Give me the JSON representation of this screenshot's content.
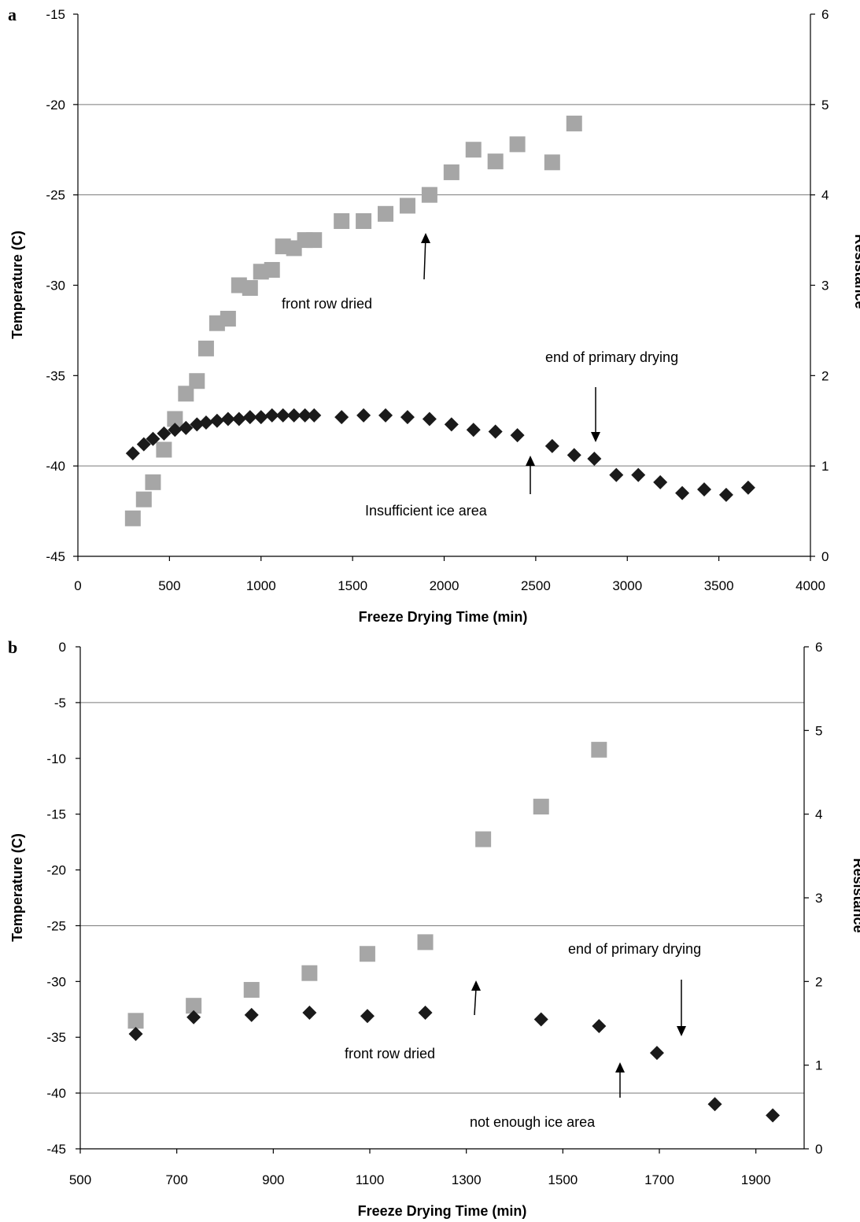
{
  "chart_data": [
    {
      "panel_label": "a",
      "type": "scatter",
      "xlabel": "Freeze Drying Time (min)",
      "ylabel": "Temperature (C)",
      "y2label": "Resistance",
      "xlim": [
        0,
        4000
      ],
      "ylim": [
        -45,
        -15
      ],
      "y2lim": [
        0,
        6
      ],
      "x_ticks": [
        0,
        500,
        1000,
        1500,
        2000,
        2500,
        3000,
        3500,
        4000
      ],
      "y_ticks": [
        -45,
        -40,
        -35,
        -30,
        -25,
        -20,
        -15
      ],
      "y2_ticks": [
        0,
        1,
        2,
        3,
        4,
        5,
        6
      ],
      "gridlines_y": [
        -40,
        -25,
        -20
      ],
      "series": [
        {
          "marker": "diamond",
          "color": "#1a1a1a",
          "axis": "left",
          "x": [
            300,
            360,
            410,
            470,
            530,
            590,
            650,
            700,
            760,
            820,
            880,
            940,
            1000,
            1060,
            1120,
            1180,
            1240,
            1290,
            1440,
            1560,
            1680,
            1800,
            1920,
            2040,
            2160,
            2280,
            2400,
            2590,
            2710,
            2820,
            2940,
            3060,
            3180,
            3300,
            3420,
            3540,
            3660
          ],
          "y": [
            -39.3,
            -38.8,
            -38.5,
            -38.2,
            -38.0,
            -37.9,
            -37.7,
            -37.6,
            -37.5,
            -37.4,
            -37.4,
            -37.3,
            -37.3,
            -37.2,
            -37.2,
            -37.2,
            -37.2,
            -37.2,
            -37.3,
            -37.2,
            -37.2,
            -37.3,
            -37.4,
            -37.7,
            -38.0,
            -38.1,
            -38.3,
            -38.9,
            -39.4,
            -39.6,
            -40.5,
            -40.5,
            -40.9,
            -41.5,
            -41.3,
            -41.6,
            -41.2
          ]
        },
        {
          "marker": "square",
          "color": "#a6a6a6",
          "axis": "right",
          "x": [
            300,
            360,
            410,
            470,
            530,
            590,
            650,
            700,
            760,
            820,
            880,
            940,
            1000,
            1060,
            1120,
            1180,
            1240,
            1290,
            1440,
            1560,
            1680,
            1800,
            1920,
            2040,
            2160,
            2280,
            2400,
            2590,
            2710
          ],
          "y": [
            0.42,
            0.63,
            0.82,
            1.18,
            1.52,
            1.8,
            1.94,
            2.3,
            2.58,
            2.63,
            3.0,
            2.97,
            3.15,
            3.17,
            3.43,
            3.41,
            3.5,
            3.5,
            3.71,
            3.71,
            3.79,
            3.88,
            4.0,
            4.25,
            4.5,
            4.37,
            4.56,
            4.36,
            4.79
          ]
        }
      ],
      "annotations": [
        {
          "text": "front row dried"
        },
        {
          "text": "end of primary drying"
        },
        {
          "text": "Insufficient ice area"
        }
      ]
    },
    {
      "panel_label": "b",
      "type": "scatter",
      "xlabel": "Freeze Drying Time (min)",
      "ylabel": "Temperature (C)",
      "y2label": "Resistance",
      "xlim": [
        500,
        2000
      ],
      "ylim": [
        -45,
        0
      ],
      "y2lim": [
        0,
        6
      ],
      "x_ticks": [
        500,
        700,
        900,
        1100,
        1300,
        1500,
        1700,
        1900
      ],
      "y_ticks": [
        -45,
        -40,
        -35,
        -30,
        -25,
        -20,
        -15,
        -10,
        -5,
        0
      ],
      "y2_ticks": [
        0,
        1,
        2,
        3,
        4,
        5,
        6
      ],
      "gridlines_y": [
        -40,
        -25,
        -5
      ],
      "series": [
        {
          "marker": "diamond",
          "color": "#1a1a1a",
          "axis": "left",
          "x": [
            615,
            735,
            855,
            975,
            1095,
            1215,
            1455,
            1575,
            1695,
            1815,
            1935
          ],
          "y": [
            -34.7,
            -33.2,
            -33.0,
            -32.8,
            -33.1,
            -32.8,
            -33.4,
            -34.0,
            -36.4,
            -41.0,
            -42.0
          ]
        },
        {
          "marker": "square",
          "color": "#a6a6a6",
          "axis": "right",
          "x": [
            615,
            735,
            855,
            975,
            1095,
            1215,
            1335,
            1455,
            1575
          ],
          "y": [
            1.53,
            1.71,
            1.9,
            2.1,
            2.33,
            2.47,
            3.7,
            4.09,
            4.77
          ]
        }
      ],
      "annotations": [
        {
          "text": "end of primary drying"
        },
        {
          "text": "front row dried"
        },
        {
          "text": "not enough ice area"
        }
      ]
    }
  ]
}
